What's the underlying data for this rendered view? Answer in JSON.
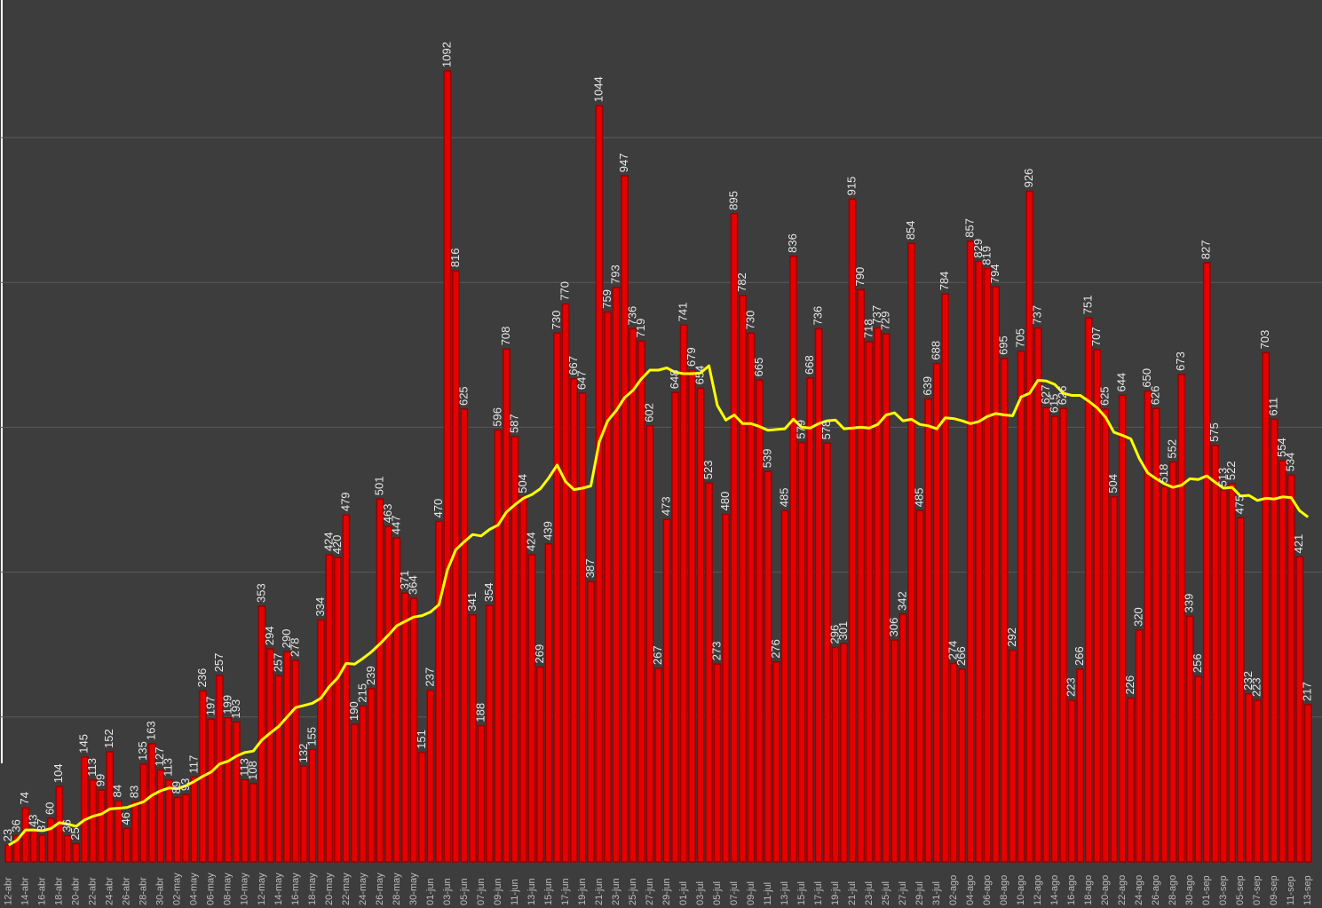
{
  "chart_data": {
    "type": "bar",
    "categories": [
      "12-abr",
      null,
      "14-abr",
      null,
      "16-abr",
      null,
      "18-abr",
      null,
      "20-abr",
      null,
      "22-abr",
      null,
      "24-abr",
      null,
      "26-abr",
      null,
      "28-abr",
      null,
      "30-abr",
      null,
      "02-may",
      null,
      "04-may",
      null,
      "06-may",
      null,
      "08-may",
      null,
      "10-may",
      null,
      "12-may",
      null,
      "14-may",
      null,
      "16-may",
      null,
      "18-may",
      null,
      "20-may",
      null,
      "22-may",
      null,
      "24-may",
      null,
      "26-may",
      null,
      "28-may",
      null,
      "30-may",
      null,
      "01-jun",
      null,
      "03-jun",
      null,
      "05-jun",
      null,
      "07-jun",
      null,
      "09-jun",
      null,
      "11-jun",
      null,
      "13-jun",
      null,
      "15-jun",
      null,
      "17-jun",
      null,
      "19-jun",
      null,
      "21-jun",
      null,
      "23-jun",
      null,
      "25-jun",
      null,
      "27-jun",
      null,
      "29-jun",
      null,
      "01-jul",
      null,
      "03-jul",
      null,
      "05-jul",
      null,
      "07-jul",
      null,
      "09-jul",
      null,
      "11-jul",
      null,
      "13-jul",
      null,
      "15-jul",
      null,
      "17-jul",
      null,
      "19-jul",
      null,
      "21-jul",
      null,
      "23-jul",
      null,
      "25-jul",
      null,
      "27-jul",
      null,
      "29-jul",
      null,
      "31-jul",
      null,
      "02-ago",
      null,
      "04-ago",
      null,
      "06-ago",
      null,
      "08-ago",
      null,
      "10-ago",
      null,
      "12-ago",
      null,
      "14-ago",
      null,
      "16-ago",
      null,
      "18-ago",
      null,
      "20-ago",
      null,
      "22-ago",
      null,
      "24-ago",
      null,
      "26-ago",
      null,
      "28-ago",
      null,
      "30-ago",
      null,
      "01-sep",
      null,
      "03-sep",
      null,
      "05-sep",
      null,
      "07-sep",
      null,
      "09-sep",
      null,
      "11-sep",
      null,
      "13-sep"
    ],
    "series": [
      {
        "type": "bar",
        "color": "#e60000",
        "values": [
          23,
          36,
          74,
          43,
          37,
          60,
          104,
          36,
          25,
          145,
          113,
          99,
          152,
          84,
          46,
          83,
          135,
          163,
          127,
          113,
          89,
          93,
          117,
          236,
          197,
          257,
          199,
          193,
          113,
          108,
          353,
          294,
          257,
          290,
          278,
          132,
          155,
          334,
          424,
          420,
          479,
          190,
          215,
          239,
          501,
          463,
          447,
          371,
          364,
          151,
          237,
          470,
          1092,
          816,
          625,
          341,
          188,
          354,
          596,
          708,
          587,
          504,
          424,
          269,
          439,
          730,
          770,
          667,
          647,
          387,
          1044,
          759,
          793,
          947,
          736,
          719,
          602,
          267,
          473,
          648,
          741,
          679,
          654,
          523,
          273,
          480,
          895,
          782,
          730,
          665,
          539,
          276,
          485,
          836,
          579,
          668,
          736,
          578,
          296,
          301,
          915,
          790,
          718,
          737,
          729,
          306,
          342,
          854,
          485,
          639,
          688,
          784,
          274,
          266,
          857,
          829,
          819,
          794,
          695,
          292,
          705,
          926,
          737,
          627,
          615,
          626,
          223,
          266,
          751,
          707,
          625,
          504,
          644,
          226,
          320,
          650,
          626,
          518,
          552,
          673,
          339,
          256,
          827,
          575,
          513,
          522,
          475,
          232,
          223,
          703,
          611,
          554,
          534,
          421,
          217
        ]
      },
      {
        "type": "line",
        "color": "#ffff00",
        "values": [
          23,
          30,
          44,
          44,
          43,
          46,
          54,
          52,
          49,
          58,
          63,
          66,
          73,
          74,
          75,
          79,
          83,
          92,
          98,
          102,
          101,
          105,
          111,
          118,
          124,
          135,
          139,
          146,
          151,
          153,
          168,
          178,
          187,
          200,
          213,
          216,
          219,
          226,
          242,
          254,
          274,
          273,
          281,
          290,
          301,
          313,
          326,
          332,
          338,
          340,
          345,
          355,
          403,
          431,
          442,
          452,
          450,
          459,
          465,
          483,
          493,
          502,
          507,
          515,
          530,
          548,
          525,
          514,
          516,
          519,
          580,
          609,
          623,
          641,
          651,
          667,
          679,
          679,
          682,
          676,
          674,
          674,
          675,
          685,
          630,
          610,
          617,
          605,
          605,
          601,
          596,
          597,
          598,
          611,
          600,
          599,
          605,
          609,
          610,
          598,
          599,
          600,
          599,
          604,
          617,
          620,
          609,
          611,
          604,
          602,
          598,
          613,
          612,
          609,
          605,
          608,
          615,
          619,
          617,
          616,
          642,
          647,
          665,
          664,
          659,
          647,
          644,
          644,
          636,
          627,
          614,
          593,
          589,
          584,
          557,
          537,
          529,
          522,
          517,
          520,
          529,
          528,
          533,
          524,
          516,
          517,
          505,
          506,
          499,
          502,
          501,
          504,
          503,
          485,
          476
        ]
      }
    ],
    "ylim": [
      0,
      1190
    ],
    "yticks": [
      200,
      400,
      600,
      800,
      1000
    ],
    "grid": true
  }
}
